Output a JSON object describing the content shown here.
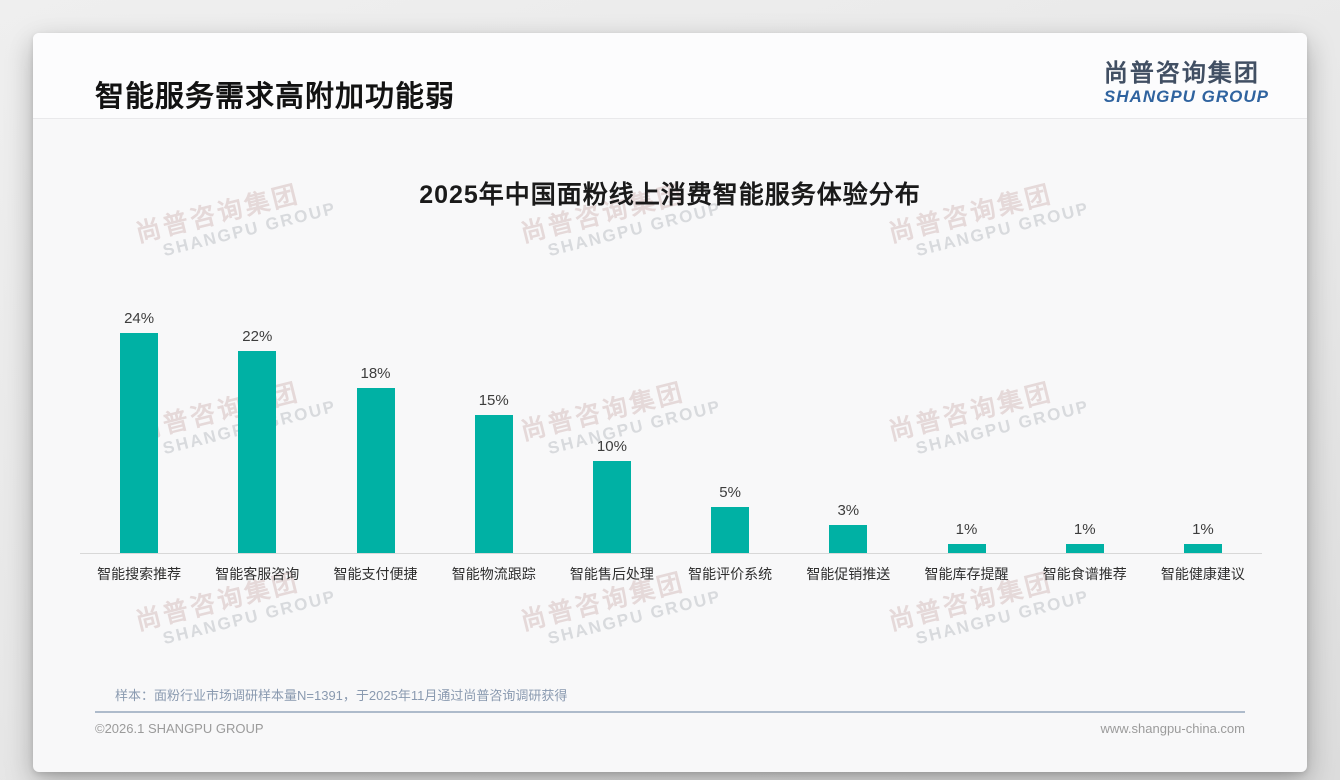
{
  "header": {
    "title": "智能服务需求高附加功能弱",
    "logo_zh": "尚普咨询集团",
    "logo_en": "SHANGPU GROUP"
  },
  "watermark": {
    "zh": "尚普咨询集团",
    "en": "SHANGPU GROUP"
  },
  "chart_data": {
    "type": "bar",
    "title": "2025年中国面粉线上消费智能服务体验分布",
    "categories": [
      "智能搜索推荐",
      "智能客服咨询",
      "智能支付便捷",
      "智能物流跟踪",
      "智能售后处理",
      "智能评价系统",
      "智能促销推送",
      "智能库存提醒",
      "智能食谱推荐",
      "智能健康建议"
    ],
    "values": [
      24,
      22,
      18,
      15,
      10,
      5,
      3,
      1,
      1,
      1
    ],
    "value_labels": [
      "24%",
      "22%",
      "18%",
      "15%",
      "10%",
      "5%",
      "3%",
      "1%",
      "1%",
      "1%"
    ],
    "unit": "%",
    "bar_color": "#00b1a4",
    "ylim": [
      0,
      26
    ],
    "grid": false,
    "legend": null,
    "xlabel": "",
    "ylabel": ""
  },
  "footer": {
    "note": "样本：面粉行业市场调研样本量N=1391，于2025年11月通过尚普咨询调研获得",
    "copyright": "©2026.1 SHANGPU GROUP",
    "website": "www.shangpu-china.com"
  }
}
